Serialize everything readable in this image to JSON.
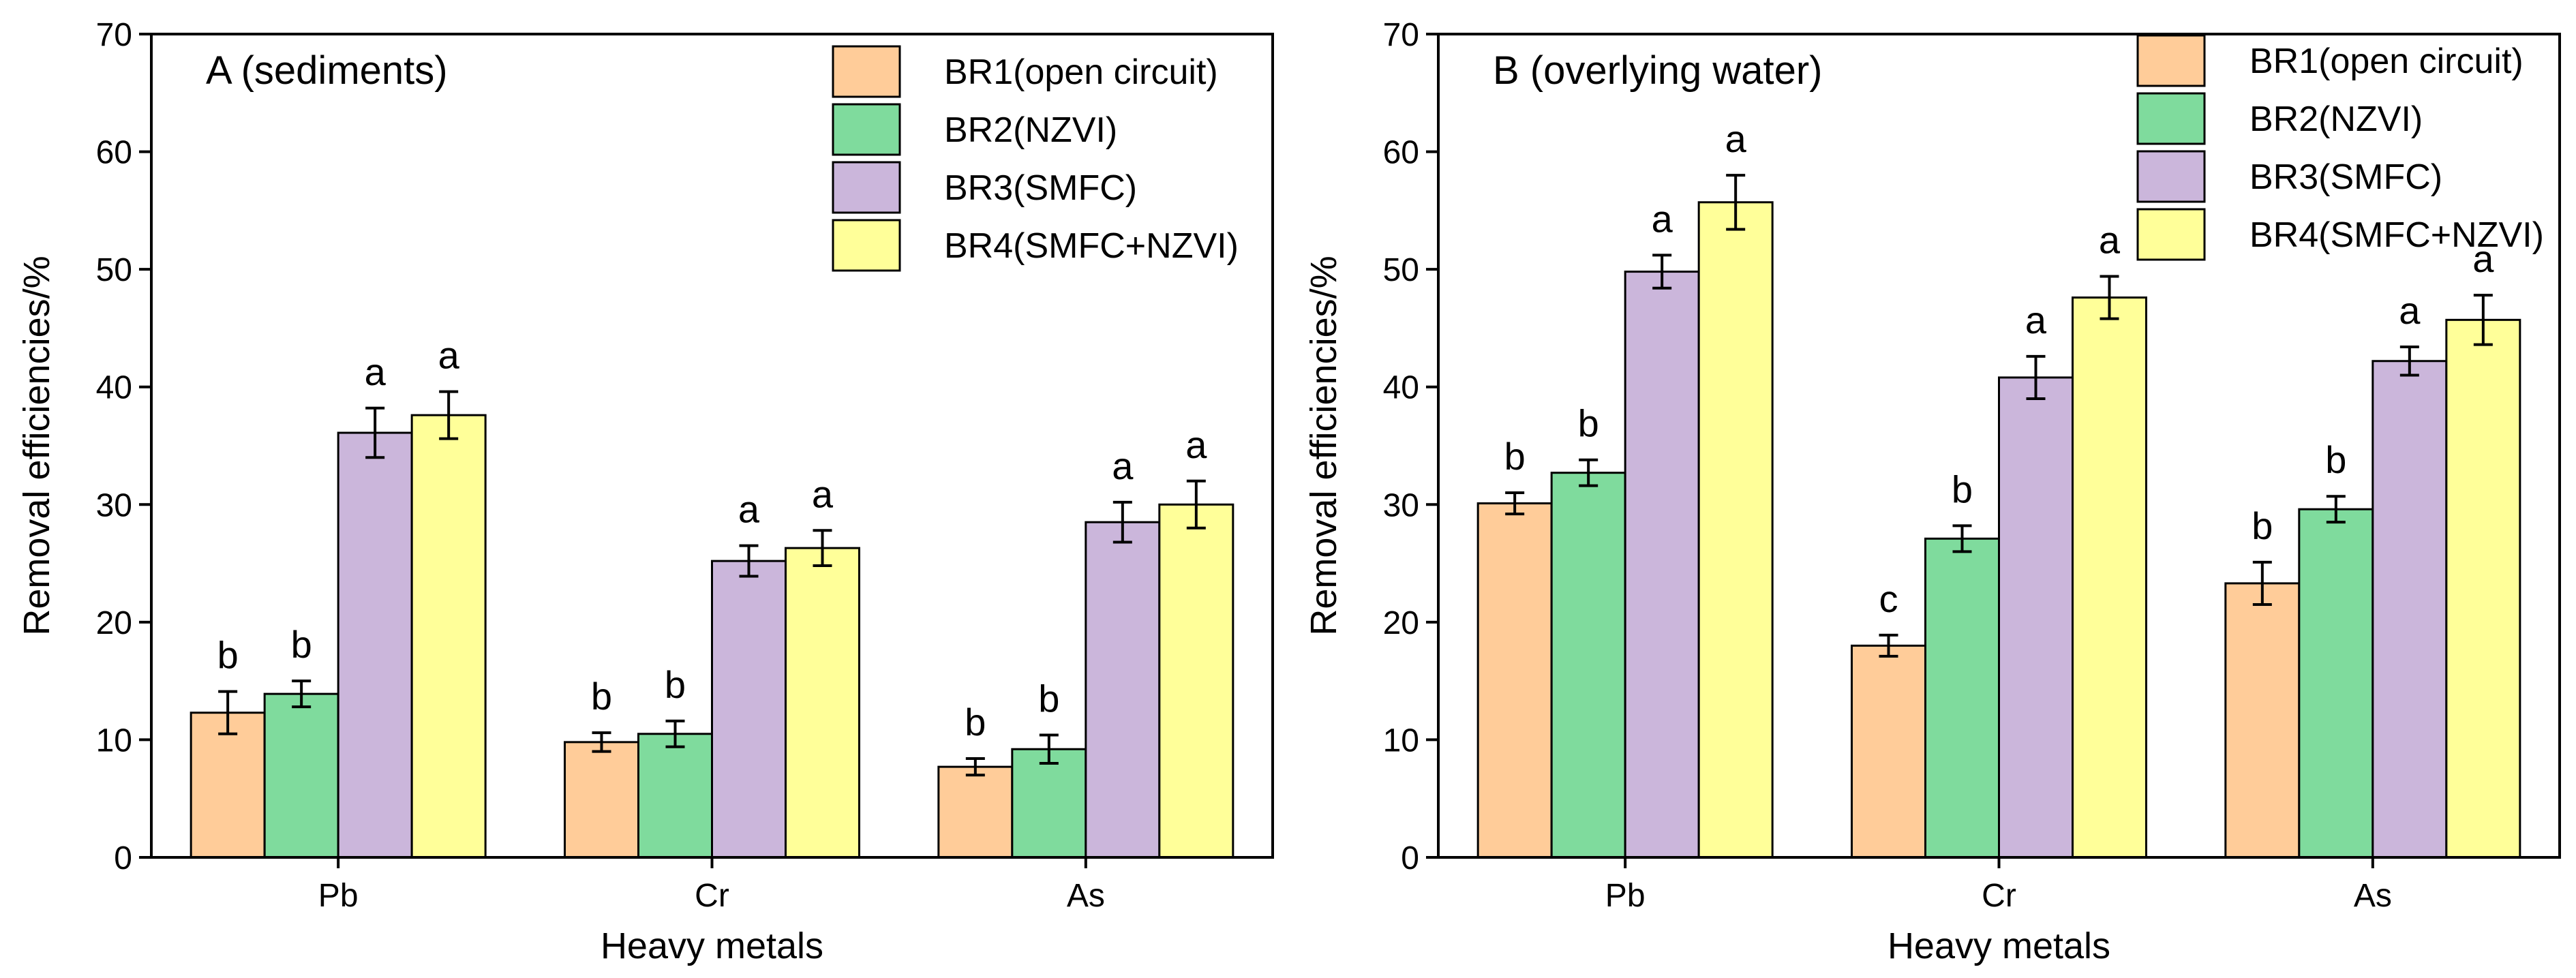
{
  "colors": {
    "BR1": "#FFCC99",
    "BR2": "#7FDB9D",
    "BR3": "#CBB6DB",
    "BR4": "#FFFF99",
    "axis": "#000000"
  },
  "chart_data": [
    {
      "type": "bar",
      "title": "A (sediments)",
      "xlabel": "Heavy metals",
      "ylabel": "Removal efficiencies/%",
      "ylim": [
        0,
        70
      ],
      "yticks": [
        "0",
        "10",
        "20",
        "30",
        "40",
        "50",
        "60",
        "70"
      ],
      "categories": [
        "Pb",
        "Cr",
        "As"
      ],
      "legend_position": "top-right",
      "series": [
        {
          "key": "BR1",
          "name": "BR1(open circuit)",
          "values": [
            12.3,
            9.8,
            7.7
          ],
          "errors": [
            1.8,
            0.8,
            0.7
          ],
          "letters": [
            "b",
            "b",
            "b"
          ]
        },
        {
          "key": "BR2",
          "name": "BR2(NZVI)",
          "values": [
            13.9,
            10.5,
            9.2
          ],
          "errors": [
            1.1,
            1.1,
            1.2
          ],
          "letters": [
            "b",
            "b",
            "b"
          ]
        },
        {
          "key": "BR3",
          "name": "BR3(SMFC)",
          "values": [
            36.1,
            25.2,
            28.5
          ],
          "errors": [
            2.1,
            1.3,
            1.7
          ],
          "letters": [
            "a",
            "a",
            "a"
          ]
        },
        {
          "key": "BR4",
          "name": "BR4(SMFC+NZVI)",
          "values": [
            37.6,
            26.3,
            30.0
          ],
          "errors": [
            2.0,
            1.5,
            2.0
          ],
          "letters": [
            "a",
            "a",
            "a"
          ]
        }
      ]
    },
    {
      "type": "bar",
      "title": "B (overlying water)",
      "xlabel": "Heavy metals",
      "ylabel": "Removal efficiencies/%",
      "ylim": [
        0,
        70
      ],
      "yticks": [
        "0",
        "10",
        "20",
        "30",
        "40",
        "50",
        "60",
        "70"
      ],
      "categories": [
        "Pb",
        "Cr",
        "As"
      ],
      "legend_position": "top-right",
      "series": [
        {
          "key": "BR1",
          "name": "BR1(open circuit)",
          "values": [
            30.1,
            18.0,
            23.3
          ],
          "errors": [
            0.9,
            0.9,
            1.8
          ],
          "letters": [
            "b",
            "c",
            "b"
          ]
        },
        {
          "key": "BR2",
          "name": "BR2(NZVI)",
          "values": [
            32.7,
            27.1,
            29.6
          ],
          "errors": [
            1.1,
            1.1,
            1.1
          ],
          "letters": [
            "b",
            "b",
            "b"
          ]
        },
        {
          "key": "BR3",
          "name": "BR3(SMFC)",
          "values": [
            49.8,
            40.8,
            42.2
          ],
          "errors": [
            1.4,
            1.8,
            1.2
          ],
          "letters": [
            "a",
            "a",
            "a"
          ]
        },
        {
          "key": "BR4",
          "name": "BR4(SMFC+NZVI)",
          "values": [
            55.7,
            47.6,
            45.7
          ],
          "errors": [
            2.3,
            1.8,
            2.1
          ],
          "letters": [
            "a",
            "a",
            "a"
          ]
        }
      ]
    }
  ]
}
